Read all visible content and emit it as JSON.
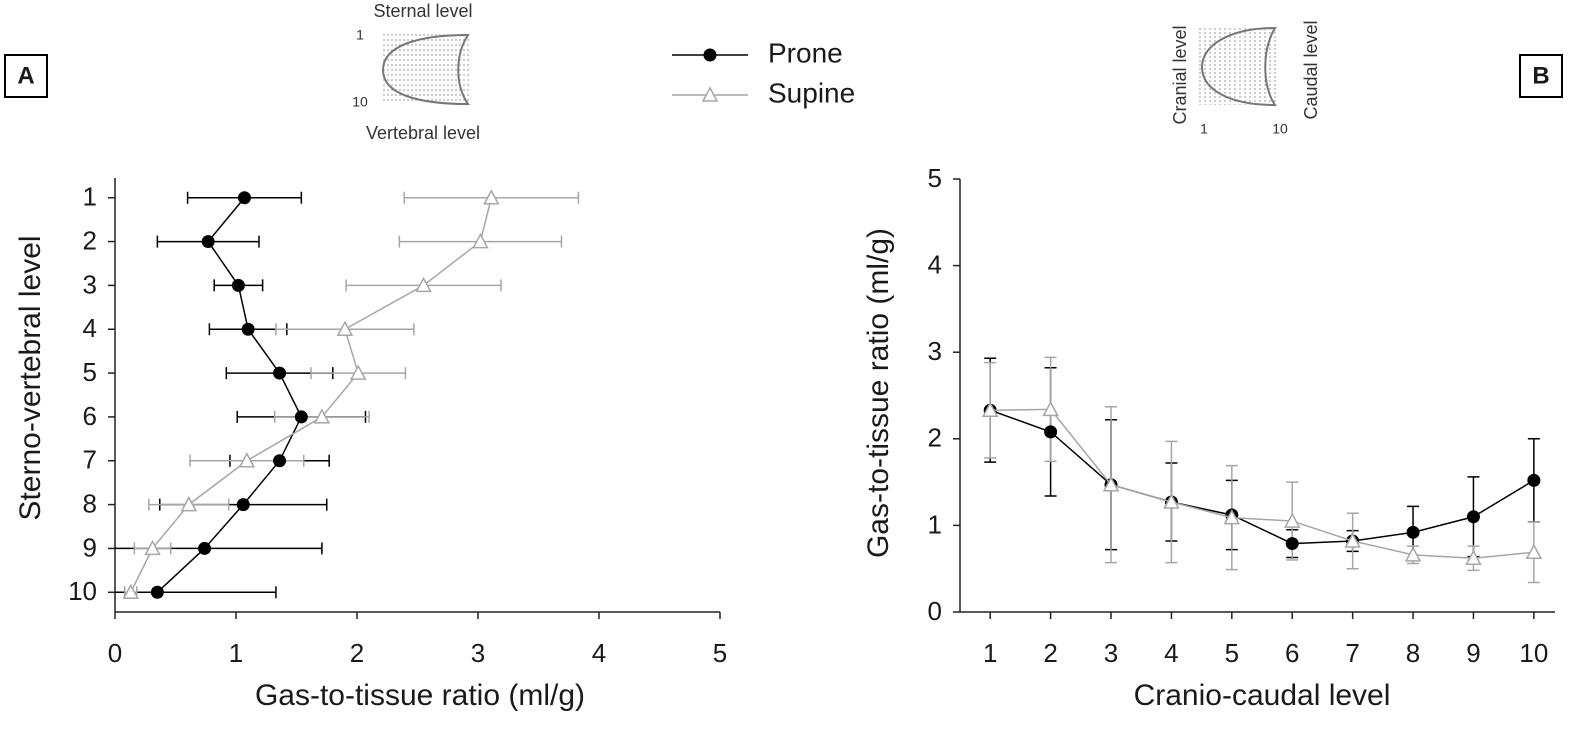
{
  "chart_data": [
    {
      "type": "line",
      "orientation": "horizontal",
      "panel_label": "A",
      "x_label": "Gas-to-tissue ratio (ml/g)",
      "y_label": "Sterno-vertebral level",
      "inset": {
        "top_label": "Sternal level",
        "bottom_label": "Vertebral level",
        "start_label": "1",
        "end_label": "10"
      },
      "y": [
        1,
        2,
        3,
        4,
        5,
        6,
        7,
        8,
        9,
        10
      ],
      "series": [
        {
          "name": "Prone",
          "color": "#000000",
          "marker": "circle",
          "values": [
            1.07,
            0.77,
            1.02,
            1.1,
            1.36,
            1.54,
            1.36,
            1.06,
            0.74,
            0.35
          ],
          "errors": [
            0.47,
            0.42,
            0.2,
            0.32,
            0.44,
            0.53,
            0.41,
            0.69,
            0.97,
            0.98
          ]
        },
        {
          "name": "Supine",
          "color": "#a6a6a6",
          "marker": "triangle",
          "values": [
            3.11,
            3.02,
            2.55,
            1.9,
            2.01,
            1.71,
            1.09,
            0.61,
            0.31,
            0.13
          ],
          "errors": [
            0.72,
            0.67,
            0.64,
            0.57,
            0.39,
            0.39,
            0.47,
            0.33,
            0.15,
            0.05
          ]
        }
      ],
      "xlim": [
        0,
        5
      ],
      "xticks": [
        0,
        1,
        2,
        3,
        4,
        5
      ],
      "ylim": [
        10.45,
        0.55
      ],
      "yticks": [
        1,
        2,
        3,
        4,
        5,
        6,
        7,
        8,
        9,
        10
      ]
    },
    {
      "type": "line",
      "panel_label": "B",
      "x_label": "Cranio-caudal level",
      "y_label": "Gas-to-tissue ratio (ml/g)",
      "inset": {
        "top_label": "Cranial level",
        "bottom_label": "Caudal level",
        "start_label": "1",
        "end_label": "10"
      },
      "x": [
        1,
        2,
        3,
        4,
        5,
        6,
        7,
        8,
        9,
        10
      ],
      "series": [
        {
          "color": "#000000",
          "marker": "circle",
          "values": [
            2.33,
            2.08,
            1.47,
            1.27,
            1.12,
            0.79,
            0.82,
            0.92,
            1.1,
            1.52
          ],
          "errors": [
            0.6,
            0.74,
            0.75,
            0.45,
            0.4,
            0.16,
            0.12,
            0.3,
            0.46,
            0.48
          ]
        },
        {
          "color": "#a6a6a6",
          "marker": "triangle",
          "values": [
            2.33,
            2.34,
            1.47,
            1.27,
            1.09,
            1.05,
            0.82,
            0.66,
            0.62,
            0.69
          ],
          "errors": [
            0.55,
            0.6,
            0.9,
            0.7,
            0.6,
            0.45,
            0.32,
            0.1,
            0.14,
            0.35
          ]
        }
      ],
      "xlim": [
        0.5,
        10.35
      ],
      "xticks": [
        1,
        2,
        3,
        4,
        5,
        6,
        7,
        8,
        9,
        10
      ],
      "ylim": [
        0,
        5
      ],
      "yticks": [
        0,
        1,
        2,
        3,
        4,
        5
      ]
    }
  ]
}
